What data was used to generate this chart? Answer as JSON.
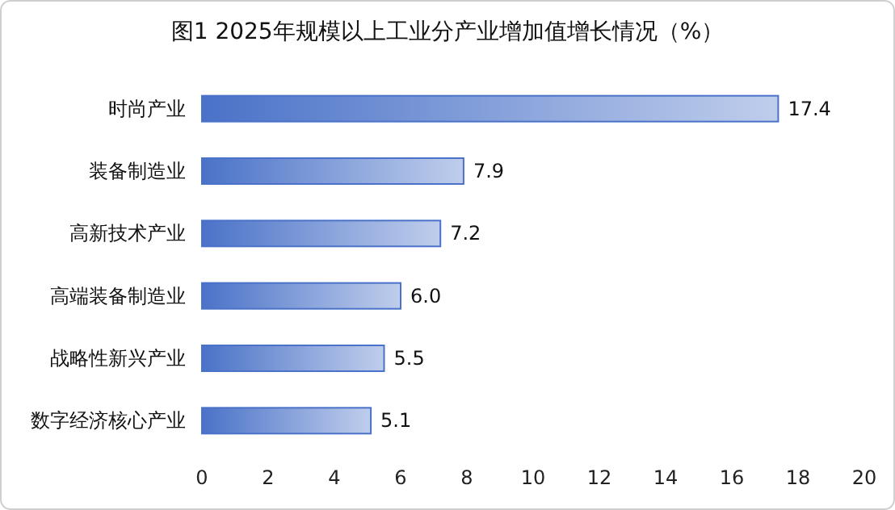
{
  "chart_data": {
    "type": "bar",
    "orientation": "horizontal",
    "title": "图1 2025年规模以上工业分产业增加值增长情况（%）",
    "categories": [
      "时尚产业",
      "装备制造业",
      "高新技术产业",
      "高端装备制造业",
      "战略性新兴产业",
      "数字经济核心产业"
    ],
    "values": [
      17.4,
      7.9,
      7.2,
      6.0,
      5.5,
      5.1
    ],
    "value_labels": [
      "17.4",
      "7.9",
      "7.2",
      "6.0",
      "5.5",
      "5.1"
    ],
    "color": "#4a72c8",
    "xlim": [
      0,
      20
    ],
    "xticks": [
      0,
      2,
      4,
      6,
      8,
      10,
      12,
      14,
      16,
      18,
      20
    ],
    "grid": false
  }
}
